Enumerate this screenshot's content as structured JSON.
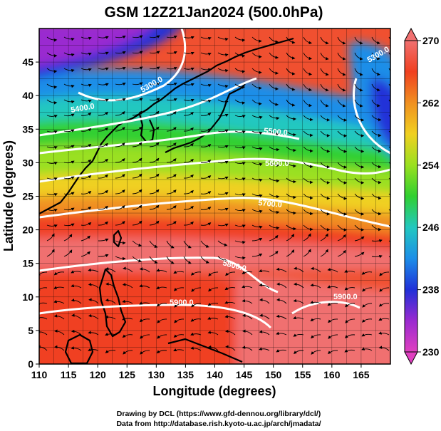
{
  "title": "GSM 12Z21Jan2024 (500.0hPa)",
  "x_axis": {
    "label": "Longitude (degrees)",
    "ticks": [
      "110",
      "115",
      "120",
      "125",
      "130",
      "135",
      "140",
      "145",
      "150",
      "155",
      "160",
      "165"
    ],
    "range": [
      110,
      170
    ]
  },
  "y_axis": {
    "label": "Latitude  (degrees)",
    "ticks": [
      "0",
      "5",
      "10",
      "15",
      "20",
      "25",
      "30",
      "35",
      "40",
      "45"
    ],
    "range": [
      0,
      50
    ]
  },
  "colorbar": {
    "ticks": [
      "230",
      "238",
      "246",
      "254",
      "262",
      "270"
    ],
    "range": [
      230,
      270
    ],
    "colors": [
      "#e040c0",
      "#9a2ad0",
      "#2030d8",
      "#1c8ee8",
      "#22c8c0",
      "#30d030",
      "#9ae020",
      "#f0d020",
      "#f09020",
      "#f04020",
      "#f07070"
    ]
  },
  "contours": {
    "labels": [
      "5300.0",
      "5400.0",
      "5500.0",
      "5600.0",
      "5700.0",
      "5800.0",
      "5900.0",
      "5900.0",
      "5300.0"
    ],
    "line_color": "#ffffff"
  },
  "credits": {
    "line1": "Drawing by DCL (https://www.gfd-dennou.org/library/dcl/)",
    "line2": "Data from http://database.rish.kyoto-u.ac.jp/arch/jmadata/"
  }
}
